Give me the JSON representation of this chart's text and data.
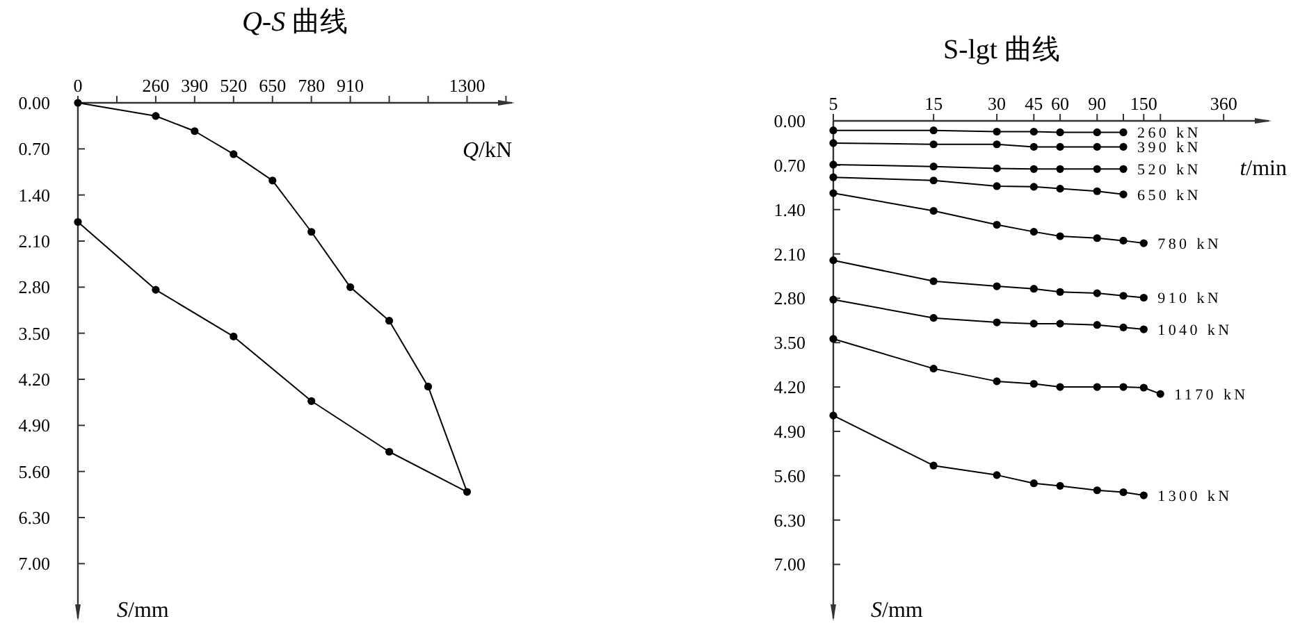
{
  "chart_data": [
    {
      "type": "line",
      "title": "*Q*-*S* 曲线",
      "xlabel": "*Q*/kN",
      "ylabel": "*S*/mm",
      "marker": "circle",
      "line_style": "solid",
      "xlim": [
        0,
        1450
      ],
      "ylim": [
        7.83,
        0
      ],
      "xticks": [
        0,
        {
          "value": 130,
          "label": null
        },
        260,
        390,
        520,
        650,
        780,
        910,
        {
          "value": 1040,
          "label": null
        },
        {
          "value": 1170,
          "label": null
        },
        1300,
        {
          "value": 1430,
          "label": null
        }
      ],
      "yticks": [
        {
          "value": 0,
          "label": "0.00"
        },
        {
          "value": 0.7,
          "label": "0.70"
        },
        {
          "value": 1.4,
          "label": "1.40"
        },
        {
          "value": 2.1,
          "label": "2.10"
        },
        {
          "value": 2.8,
          "label": "2.80"
        },
        {
          "value": 3.5,
          "label": "3.50"
        },
        {
          "value": 4.2,
          "label": "4.20"
        },
        {
          "value": 4.9,
          "label": "4.90"
        },
        {
          "value": 5.6,
          "label": "5.60"
        },
        {
          "value": 6.3,
          "label": "6.30"
        },
        {
          "value": 7.0,
          "label": "7.00"
        }
      ],
      "series": [
        {
          "color": "#000000",
          "x": [
            0,
            260,
            390,
            520,
            650,
            780,
            910,
            1040,
            1170,
            1300,
            1040,
            780,
            520,
            260,
            0
          ],
          "values": [
            0,
            0.2,
            0.43,
            0.78,
            1.18,
            1.96,
            2.8,
            3.31,
            4.31,
            5.91,
            5.3,
            4.53,
            3.55,
            2.84,
            1.81
          ]
        }
      ]
    },
    {
      "type": "line",
      "title": "S-lgt 曲线",
      "xlabel": "*t*/min",
      "ylabel": "*S*/mm",
      "marker": "circle",
      "line_style": "solid",
      "log": "x",
      "xlim": [
        5,
        590
      ],
      "ylim": [
        7.85,
        0
      ],
      "xticks": [
        5,
        15,
        30,
        45,
        60,
        90,
        {
          "value": 120,
          "label": null
        },
        150,
        {
          "value": 180,
          "label": null
        },
        360
      ],
      "yticks": [
        {
          "value": 0,
          "label": "0.00"
        },
        {
          "value": 0.7,
          "label": "0.70"
        },
        {
          "value": 1.4,
          "label": "1.40"
        },
        {
          "value": 2.1,
          "label": "2.10"
        },
        {
          "value": 2.8,
          "label": "2.80"
        },
        {
          "value": 3.5,
          "label": "3.50"
        },
        {
          "value": 4.2,
          "label": "4.20"
        },
        {
          "value": 4.9,
          "label": "4.90"
        },
        {
          "value": 5.6,
          "label": "5.60"
        },
        {
          "value": 6.3,
          "label": "6.30"
        },
        {
          "value": 7.0,
          "label": "7.00"
        }
      ],
      "series": [
        {
          "name": "260 kN",
          "color": "#000000",
          "x": [
            5,
            15,
            30,
            45,
            60,
            90,
            120
          ],
          "values": [
            0.15,
            0.15,
            0.17,
            0.17,
            0.18,
            0.18,
            0.18
          ]
        },
        {
          "name": "390 kN",
          "color": "#000000",
          "x": [
            5,
            15,
            30,
            45,
            60,
            90,
            120
          ],
          "values": [
            0.35,
            0.37,
            0.37,
            0.41,
            0.41,
            0.41,
            0.41
          ]
        },
        {
          "name": "520 kN",
          "color": "#000000",
          "x": [
            5,
            15,
            30,
            45,
            60,
            90,
            120
          ],
          "values": [
            0.69,
            0.72,
            0.75,
            0.76,
            0.76,
            0.76,
            0.76
          ]
        },
        {
          "name": "650 kN",
          "color": "#000000",
          "x": [
            5,
            15,
            30,
            45,
            60,
            90,
            120
          ],
          "values": [
            0.89,
            0.94,
            1.03,
            1.04,
            1.07,
            1.11,
            1.16
          ]
        },
        {
          "name": "780 kN",
          "color": "#000000",
          "x": [
            5,
            15,
            30,
            45,
            60,
            90,
            120,
            150
          ],
          "values": [
            1.14,
            1.42,
            1.64,
            1.75,
            1.82,
            1.85,
            1.89,
            1.93
          ]
        },
        {
          "name": "910 kN",
          "color": "#000000",
          "x": [
            5,
            15,
            30,
            45,
            60,
            90,
            120,
            150
          ],
          "values": [
            2.2,
            2.53,
            2.61,
            2.65,
            2.7,
            2.72,
            2.76,
            2.79
          ]
        },
        {
          "name": "1040 kN",
          "color": "#000000",
          "x": [
            5,
            15,
            30,
            45,
            60,
            90,
            120,
            150
          ],
          "values": [
            2.82,
            3.11,
            3.18,
            3.2,
            3.2,
            3.22,
            3.26,
            3.29
          ]
        },
        {
          "name": "1170 kN",
          "color": "#000000",
          "x": [
            5,
            15,
            30,
            45,
            60,
            90,
            120,
            150,
            180
          ],
          "values": [
            3.44,
            3.91,
            4.11,
            4.15,
            4.2,
            4.2,
            4.2,
            4.21,
            4.31
          ]
        },
        {
          "name": "1300 kN",
          "color": "#000000",
          "x": [
            5,
            15,
            30,
            45,
            60,
            90,
            120,
            150
          ],
          "values": [
            4.65,
            5.44,
            5.59,
            5.72,
            5.76,
            5.83,
            5.86,
            5.91
          ]
        }
      ]
    }
  ]
}
